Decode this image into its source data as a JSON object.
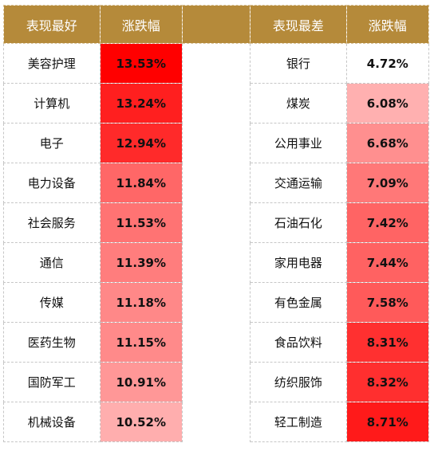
{
  "headers": {
    "best_name": "表现最好",
    "best_change": "涨跌幅",
    "worst_name": "表现最差",
    "worst_change": "涨跌幅"
  },
  "best": [
    {
      "name": "美容护理",
      "change": "13.53%",
      "color": "#ff0000"
    },
    {
      "name": "计算机",
      "change": "13.24%",
      "color": "#ff1f1f"
    },
    {
      "name": "电子",
      "change": "12.94%",
      "color": "#ff2a2a"
    },
    {
      "name": "电力设备",
      "change": "11.84%",
      "color": "#ff6767"
    },
    {
      "name": "社会服务",
      "change": "11.53%",
      "color": "#ff7373"
    },
    {
      "name": "通信",
      "change": "11.39%",
      "color": "#ff7d7d"
    },
    {
      "name": "传媒",
      "change": "11.18%",
      "color": "#ff8888"
    },
    {
      "name": "医药生物",
      "change": "11.15%",
      "color": "#ff8a8a"
    },
    {
      "name": "国防军工",
      "change": "10.91%",
      "color": "#ff9797"
    },
    {
      "name": "机械设备",
      "change": "10.52%",
      "color": "#ffaeae"
    }
  ],
  "worst": [
    {
      "name": "银行",
      "change": "4.72%",
      "color": "#ffffff"
    },
    {
      "name": "煤炭",
      "change": "6.08%",
      "color": "#ffb0b0"
    },
    {
      "name": "公用事业",
      "change": "6.68%",
      "color": "#ff8f8f"
    },
    {
      "name": "交通运输",
      "change": "7.09%",
      "color": "#ff7878"
    },
    {
      "name": "石油石化",
      "change": "7.42%",
      "color": "#ff6464"
    },
    {
      "name": "家用电器",
      "change": "7.44%",
      "color": "#ff6262"
    },
    {
      "name": "有色金属",
      "change": "7.58%",
      "color": "#ff5a5a"
    },
    {
      "name": "食品饮料",
      "change": "8.31%",
      "color": "#ff3030"
    },
    {
      "name": "纺织服饰",
      "change": "8.32%",
      "color": "#ff2f2f"
    },
    {
      "name": "轻工制造",
      "change": "8.71%",
      "color": "#ff1a1a"
    }
  ]
}
